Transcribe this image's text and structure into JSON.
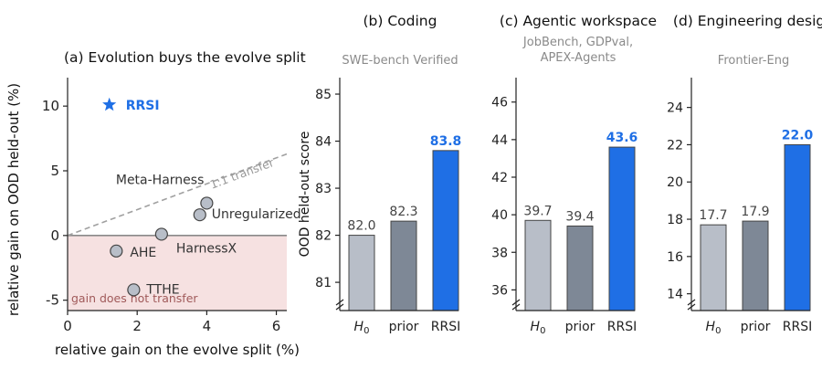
{
  "chart_data": [
    {
      "type": "scatter",
      "title": "(a) Evolution buys the evolve split",
      "xlabel": "relative gain on the evolve split (%)",
      "ylabel": "relative gain on OOD held-out (%)",
      "xlim": [
        0,
        6.3
      ],
      "ylim": [
        -5.8,
        12.2
      ],
      "xticks": [
        0,
        2,
        4,
        6
      ],
      "yticks": [
        -5,
        0,
        5,
        10
      ],
      "points": [
        {
          "label": "RRSI",
          "x": 1.2,
          "y": 10.1,
          "marker": "star",
          "color": "#1f6fe5"
        },
        {
          "label": "Meta-Harness",
          "x": 4.0,
          "y": 2.5
        },
        {
          "label": "Unregularized",
          "x": 3.8,
          "y": 1.6
        },
        {
          "label": "HarnessX",
          "x": 2.7,
          "y": 0.1
        },
        {
          "label": "AHE",
          "x": 1.4,
          "y": -1.2
        },
        {
          "label": "TTHE",
          "x": 1.9,
          "y": -4.2
        }
      ],
      "reference_line": {
        "label": "1:1 transfer",
        "slope": 1
      },
      "shaded_region": {
        "label": "gain does not transfer",
        "y_from": -5.8,
        "y_to": 0,
        "color": "#f6e1e1"
      },
      "grid": false
    },
    {
      "type": "bar",
      "title": "(b) Coding",
      "subtitle": "SWE-bench Verified",
      "ylabel": "OOD held-out score",
      "categories": [
        "H0",
        "prior",
        "RRSI"
      ],
      "values": [
        82.0,
        82.3,
        83.8
      ],
      "value_labels": [
        "82.0",
        "82.3",
        "83.8"
      ],
      "colors": [
        "#b8bec8",
        "#7e8896",
        "#1f6fe5"
      ],
      "ylim": [
        80.4,
        85.35
      ],
      "yticks": [
        81,
        82,
        83,
        84,
        85
      ],
      "grid": false
    },
    {
      "type": "bar",
      "title": "(c) Agentic workspace",
      "subtitle": "JobBench, GDPval, APEX-Agents",
      "categories": [
        "H0",
        "prior",
        "RRSI"
      ],
      "values": [
        39.7,
        39.4,
        43.6
      ],
      "value_labels": [
        "39.7",
        "39.4",
        "43.6"
      ],
      "colors": [
        "#b8bec8",
        "#7e8896",
        "#1f6fe5"
      ],
      "ylim": [
        34.9,
        47.3
      ],
      "yticks": [
        36,
        38,
        40,
        42,
        44,
        46
      ],
      "grid": false
    },
    {
      "type": "bar",
      "title": "(d) Engineering design",
      "subtitle": "Frontier-Eng",
      "categories": [
        "H0",
        "prior",
        "RRSI"
      ],
      "values": [
        17.7,
        17.9,
        22.0
      ],
      "value_labels": [
        "17.7",
        "17.9",
        "22.0"
      ],
      "colors": [
        "#b8bec8",
        "#7e8896",
        "#1f6fe5"
      ],
      "ylim": [
        13.1,
        25.6
      ],
      "yticks": [
        14,
        16,
        18,
        20,
        22,
        24
      ],
      "grid": false
    }
  ]
}
